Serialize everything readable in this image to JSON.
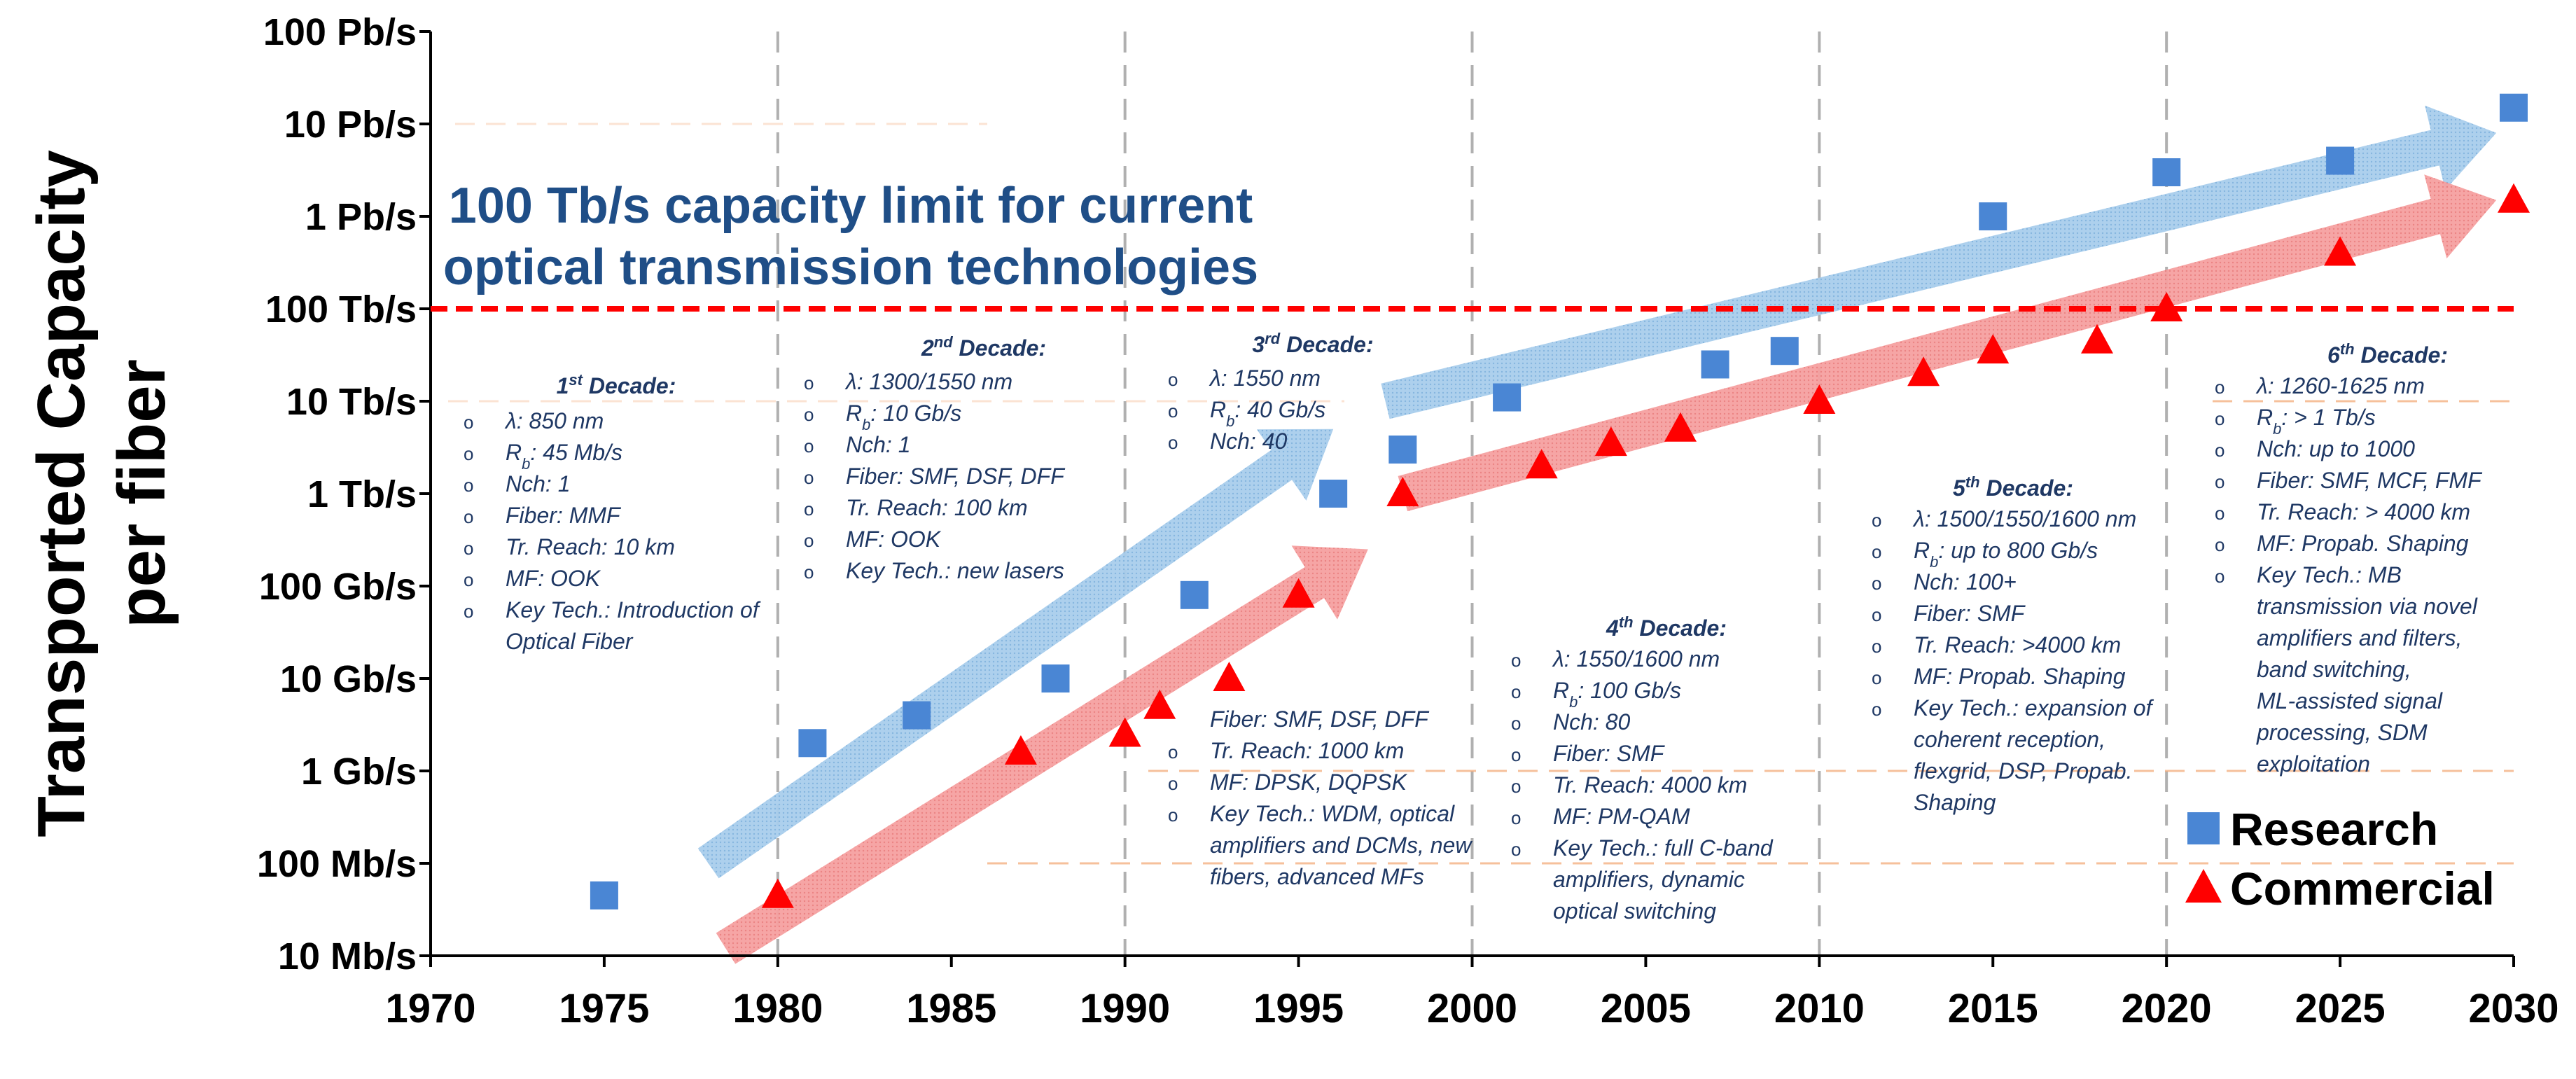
{
  "chart_data": {
    "type": "scatter",
    "title": "",
    "ylabel_lines": [
      "Transported Capacity",
      "per fiber"
    ],
    "xlabel": "",
    "x_ticks": [
      "1970",
      "1975",
      "1980",
      "1985",
      "1990",
      "1995",
      "2000",
      "2005",
      "2010",
      "2015",
      "2020",
      "2025",
      "2030"
    ],
    "xlim": [
      1970,
      2030
    ],
    "y_scale": "log",
    "y_ticks": [
      "10 Mb/s",
      "100 Mb/s",
      "1 Gb/s",
      "10 Gb/s",
      "100 Gb/s",
      "1 Tb/s",
      "10 Tb/s",
      "100 Tb/s",
      "1 Pb/s",
      "10 Pb/s",
      "100 Pb/s"
    ],
    "ylim": [
      "10 Mb/s",
      "100 Pb/s"
    ],
    "limit_line": {
      "value": "100 Tb/s",
      "color": "#ff0000",
      "label": [
        "100 Tb/s capacity limit for current",
        "optical transmission technologies"
      ]
    },
    "series": [
      {
        "name": "Research",
        "marker": "square",
        "color": "#4a86d4",
        "points": [
          {
            "year": 1975,
            "capacity": "45 Mb/s"
          },
          {
            "year": 1981,
            "capacity": "2 Gb/s"
          },
          {
            "year": 1984,
            "capacity": "4 Gb/s"
          },
          {
            "year": 1988,
            "capacity": "10 Gb/s"
          },
          {
            "year": 1992,
            "capacity": "80 Gb/s"
          },
          {
            "year": 1996,
            "capacity": "1 Tb/s"
          },
          {
            "year": 1998,
            "capacity": "3 Tb/s"
          },
          {
            "year": 2001,
            "capacity": "11 Tb/s"
          },
          {
            "year": 2007,
            "capacity": "25 Tb/s"
          },
          {
            "year": 2009,
            "capacity": "35 Tb/s"
          },
          {
            "year": 2015,
            "capacity": "1 Pb/s"
          },
          {
            "year": 2020,
            "capacity": "3 Pb/s"
          },
          {
            "year": 2025,
            "capacity": "4 Pb/s"
          },
          {
            "year": 2030,
            "capacity": "15 Pb/s"
          }
        ]
      },
      {
        "name": "Commercial",
        "marker": "triangle",
        "color": "#ff0000",
        "points": [
          {
            "year": 1980,
            "capacity": "45 Mb/s"
          },
          {
            "year": 1987,
            "capacity": "1.6 Gb/s"
          },
          {
            "year": 1990,
            "capacity": "2.5 Gb/s"
          },
          {
            "year": 1991,
            "capacity": "5 Gb/s"
          },
          {
            "year": 1993,
            "capacity": "10 Gb/s"
          },
          {
            "year": 1995,
            "capacity": "80 Gb/s"
          },
          {
            "year": 1998,
            "capacity": "1 Tb/s"
          },
          {
            "year": 2002,
            "capacity": "2 Tb/s"
          },
          {
            "year": 2004,
            "capacity": "3.5 Tb/s"
          },
          {
            "year": 2006,
            "capacity": "5 Tb/s"
          },
          {
            "year": 2010,
            "capacity": "10 Tb/s"
          },
          {
            "year": 2013,
            "capacity": "20 Tb/s"
          },
          {
            "year": 2015,
            "capacity": "35 Tb/s"
          },
          {
            "year": 2018,
            "capacity": "45 Tb/s"
          },
          {
            "year": 2020,
            "capacity": "100 Tb/s"
          },
          {
            "year": 2025,
            "capacity": "400 Tb/s"
          },
          {
            "year": 2030,
            "capacity": "1.5 Pb/s"
          }
        ]
      }
    ],
    "trend_arrows": [
      {
        "series": "Research",
        "from": {
          "year": 1978,
          "capacity": "100 Mb/s"
        },
        "to": {
          "year": 1996,
          "capacity": "5 Tb/s"
        }
      },
      {
        "series": "Research",
        "from": {
          "year": 1997.5,
          "capacity": "10 Tb/s"
        },
        "to": {
          "year": 2029.5,
          "capacity": "8 Pb/s"
        }
      },
      {
        "series": "Commercial",
        "from": {
          "year": 1978.5,
          "capacity": "12 Mb/s"
        },
        "to": {
          "year": 1997,
          "capacity": "250 Gb/s"
        }
      },
      {
        "series": "Commercial",
        "from": {
          "year": 1998,
          "capacity": "1 Tb/s"
        },
        "to": {
          "year": 2029.5,
          "capacity": "1.5 Pb/s"
        }
      }
    ],
    "legend": {
      "placement": "bottom-right",
      "entries": [
        "Research",
        "Commercial"
      ]
    },
    "grid": {
      "vertical_dashed_years": [
        1980,
        1990,
        2000,
        2010,
        2020
      ]
    },
    "annotations": [
      {
        "title": "1st Decade:",
        "items": [
          "λ: 850 nm",
          "Rb: 45 Mb/s",
          "Nch: 1",
          "Fiber: MMF",
          "Tr. Reach: 10 km",
          "MF: OOK",
          "Key Tech.: Introduction of Optical Fiber"
        ]
      },
      {
        "title": "2nd Decade:",
        "items": [
          "λ: 1300/1550 nm",
          "Rb: 10 Gb/s",
          "Nch: 1",
          "Fiber: SMF, DSF, DFF",
          "Tr. Reach: 100 km",
          "MF: OOK",
          "Key Tech.: new lasers"
        ]
      },
      {
        "title": "3rd Decade:",
        "items": [
          "λ: 1550 nm",
          "Rb: 40 Gb/s",
          "Nch: 40",
          "Fiber: SMF, DSF, DFF",
          "Tr. Reach: 1000 km",
          "MF: DPSK, DQPSK",
          "Key Tech.: WDM, optical amplifiers and DCMs, new fibers, advanced MFs"
        ]
      },
      {
        "title": "4th Decade:",
        "items": [
          "λ: 1550/1600 nm",
          "Rb: 100 Gb/s",
          "Nch: 80",
          "Fiber: SMF",
          "Tr. Reach: 4000 km",
          "MF: PM-QAM",
          "Key Tech.: full C-band amplifiers, dynamic optical switching"
        ]
      },
      {
        "title": "5th Decade:",
        "items": [
          "λ: 1500/1550/1600 nm",
          "Rb: up to 800 Gb/s",
          "Nch: 100+",
          "Fiber: SMF",
          "Tr. Reach: >4000 km",
          "MF: Propab. Shaping",
          "Key Tech.: expansion of coherent reception, flexgrid, DSP, Propab. Shaping"
        ]
      },
      {
        "title": "6th Decade:",
        "items": [
          "λ: 1260-1625 nm",
          "Rb: > 1 Tb/s",
          "Nch: up to 1000",
          "Fiber: SMF, MCF, FMF",
          "Tr. Reach: > 4000 km",
          "MF: Propab. Shaping",
          "Key Tech.: MB transmission via novel amplifiers and filters, band switching, ML-assisted signal processing, SDM exploitation"
        ]
      }
    ],
    "colors": {
      "research": "#4a86d4",
      "commercial": "#ff0000",
      "limit": "#ff0000",
      "limit_text": "#1f4e87",
      "annotation_text": "#1f3864"
    }
  }
}
